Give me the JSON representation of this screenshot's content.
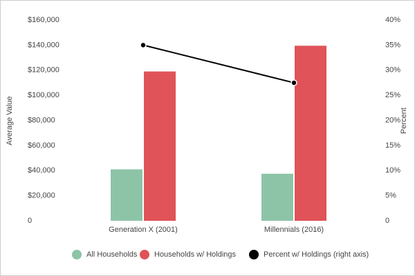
{
  "chart_data": {
    "type": "bar",
    "categories": [
      "Generation X (2001)",
      "Millennials (2016)"
    ],
    "y_label": "Average Value",
    "y2_label": "Percent",
    "ylim": [
      0,
      160000
    ],
    "yticks": [
      0,
      {
        "value": 20000,
        "label": "$20,000"
      },
      {
        "value": 40000,
        "label": "$40,000"
      },
      {
        "value": 60000,
        "label": "$60,000"
      },
      {
        "value": 80000,
        "label": "$80,000"
      },
      {
        "value": 100000,
        "label": "$100,000"
      },
      {
        "value": 120000,
        "label": "$120,000"
      },
      {
        "value": 140000,
        "label": "$140,000"
      },
      {
        "value": 160000,
        "label": "$160,000"
      }
    ],
    "y2lim": [
      0,
      40
    ],
    "y2ticks": [
      0,
      {
        "value": 5,
        "label": "5%"
      },
      {
        "value": 10,
        "label": "10%"
      },
      {
        "value": 15,
        "label": "15%"
      },
      {
        "value": 20,
        "label": "20%"
      },
      {
        "value": 25,
        "label": "25%"
      },
      {
        "value": 30,
        "label": "30%"
      },
      {
        "value": 35,
        "label": "35%"
      },
      {
        "value": 40,
        "label": "40%"
      }
    ],
    "series": [
      {
        "name": "All Households",
        "color": "#8dc4a8",
        "values": [
          41000,
          37500
        ]
      },
      {
        "name": "Households w/ Holdings",
        "color": "#e05358",
        "values": [
          119000,
          139500
        ]
      },
      {
        "name": "Percent w/ Holdings (right axis)",
        "color": "#000000",
        "type": "line",
        "axis": "y2",
        "values": [
          35,
          27.5
        ]
      }
    ]
  }
}
